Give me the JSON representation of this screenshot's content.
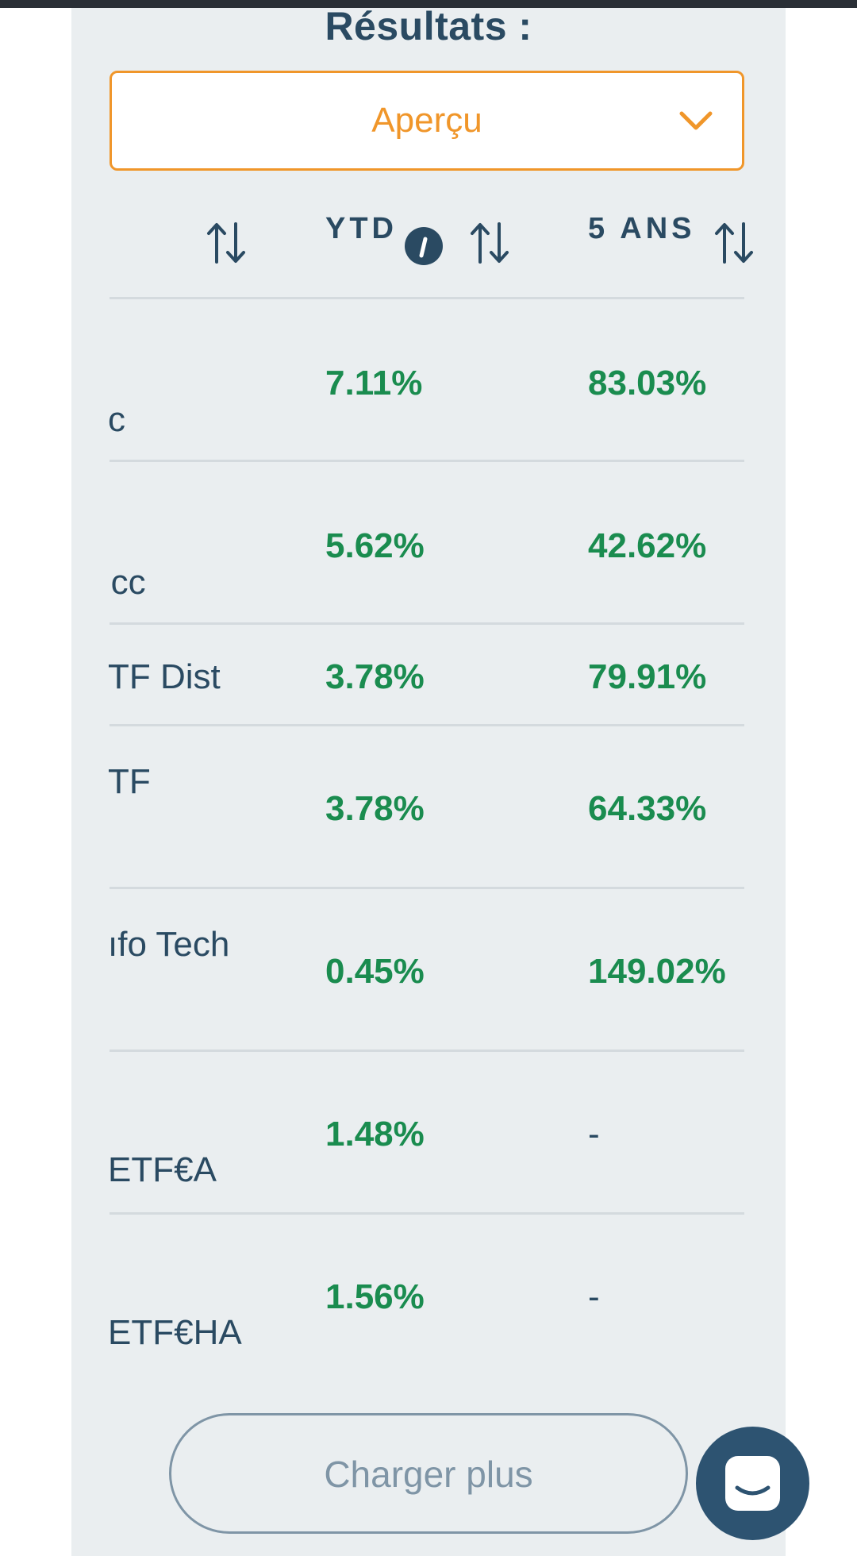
{
  "results": {
    "title": "Résultats :",
    "view_select": {
      "value": "Aperçu"
    }
  },
  "table": {
    "columns": [
      {
        "label": "",
        "sortable": true
      },
      {
        "label": "YTD",
        "has_info": true,
        "sortable": true
      },
      {
        "label": "5 ANS",
        "sortable": true
      }
    ],
    "rows": [
      {
        "name": "c",
        "ytd": "7.11%",
        "five_years": "83.03%"
      },
      {
        "name": " cc",
        "ytd": "5.62%",
        "five_years": "42.62%"
      },
      {
        "name": "TF Dist",
        "ytd": "3.78%",
        "five_years": "79.91%"
      },
      {
        "name": "TF",
        "ytd": "3.78%",
        "five_years": "64.33%"
      },
      {
        "name": "ıfo Tech",
        "ytd": "0.45%",
        "five_years": "149.02%"
      },
      {
        "name": "ETF€A",
        "ytd": "1.48%",
        "five_years": "-"
      },
      {
        "name": "ETF€HA",
        "ytd": "1.56%",
        "five_years": "-"
      }
    ]
  },
  "actions": {
    "load_more": "Charger plus"
  },
  "colors": {
    "accent": "#f0962a",
    "heading": "#2a4a62",
    "positive": "#1a8c4f",
    "panel_bg": "#eaeef0"
  },
  "icons": {
    "sort": "sort-arrows-icon",
    "info": "info-icon",
    "dropdown": "chevron-down-icon",
    "chat": "chat-icon"
  }
}
